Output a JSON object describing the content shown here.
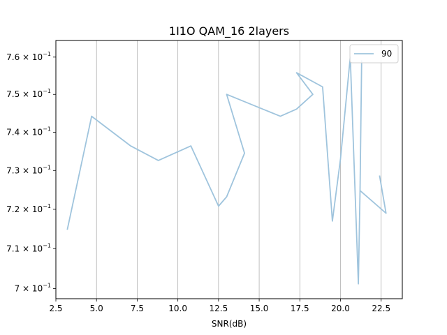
{
  "chart_data": {
    "type": "line",
    "title": "1I1O QAM_16 2layers",
    "xlabel": "SNR(dB)",
    "ylabel": "",
    "xlim": [
      2.5,
      23.8
    ],
    "ylim": [
      0.6975,
      0.7645
    ],
    "yscale": "log",
    "grid": "vertical",
    "legend_position": "top-right",
    "x_ticks": [
      {
        "value": 2.5,
        "label": "2.5"
      },
      {
        "value": 5.0,
        "label": "5.0"
      },
      {
        "value": 7.5,
        "label": "7.5"
      },
      {
        "value": 10.0,
        "label": "10.0"
      },
      {
        "value": 12.5,
        "label": "12.5"
      },
      {
        "value": 15.0,
        "label": "15.0"
      },
      {
        "value": 17.5,
        "label": "17.5"
      },
      {
        "value": 20.0,
        "label": "20.0"
      },
      {
        "value": 22.5,
        "label": "22.5"
      }
    ],
    "y_ticks": [
      {
        "value": 0.7,
        "mant": "7",
        "exp": "−1"
      },
      {
        "value": 0.71,
        "mant": "7.1",
        "exp": "−1"
      },
      {
        "value": 0.72,
        "mant": "7.2",
        "exp": "−1"
      },
      {
        "value": 0.73,
        "mant": "7.3",
        "exp": "−1"
      },
      {
        "value": 0.74,
        "mant": "7.4",
        "exp": "−1"
      },
      {
        "value": 0.75,
        "mant": "7.5",
        "exp": "−1"
      },
      {
        "value": 0.76,
        "mant": "7.6",
        "exp": "−1"
      }
    ],
    "series": [
      {
        "name": "90",
        "color": "#9fc4dd",
        "x": [
          3.2,
          4.7,
          7.1,
          8.8,
          10.8,
          12.5,
          13.0,
          14.1,
          13.0,
          16.3,
          17.3,
          18.3,
          17.3,
          18.9,
          19.5,
          20.0,
          20.6,
          21.1,
          21.2,
          21.3,
          21.2,
          22.8,
          22.4
        ],
        "y": [
          0.7148,
          0.7442,
          0.7364,
          0.7326,
          0.7364,
          0.7208,
          0.7232,
          0.7345,
          0.75,
          0.7442,
          0.7461,
          0.75,
          0.7558,
          0.752,
          0.717,
          0.733,
          0.76,
          0.7012,
          0.7248,
          0.759,
          0.7248,
          0.719,
          0.7287
        ]
      }
    ]
  }
}
